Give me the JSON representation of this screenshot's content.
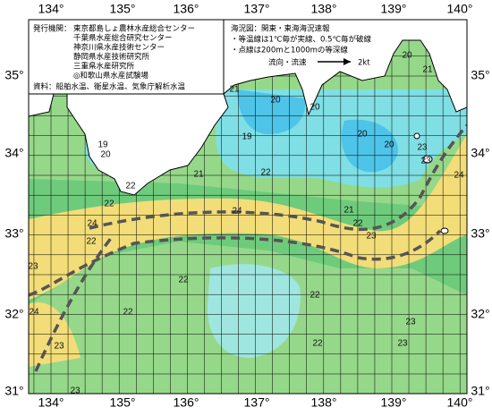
{
  "legend": {
    "agencies_label": "発行機関：",
    "agencies": [
      "東京都島しょ農林水産総合センター",
      "千葉県水産総合研究センター",
      "神奈川県水産技術センター",
      "静岡県水産技術研究所",
      "三重県水産研究所",
      "◎和歌山県水産試験場"
    ],
    "sources": "資料：船舶水温、衛星水温、気象庁解析水温"
  },
  "notes": {
    "title": "海況図：関東・東海海況速報",
    "lines": [
      "・等温線は1℃毎が実線、0.5℃毎が破線",
      "・点線は200mと1000mの等深線"
    ],
    "current_label": "流向・流速",
    "current_speed": "2kt"
  },
  "longitude_labels": [
    "134°",
    "135°",
    "136°",
    "137°",
    "138°",
    "139°",
    "140°"
  ],
  "latitude_labels": [
    "35°",
    "34°",
    "33°",
    "32°",
    "31°"
  ],
  "isotherm_labels": [
    20,
    21,
    21,
    20,
    20,
    19,
    20,
    20,
    23,
    23,
    24,
    19,
    20,
    21,
    22,
    22,
    22,
    24,
    21,
    22,
    23,
    24,
    22,
    23,
    22,
    22,
    24,
    22,
    23,
    22,
    23,
    23,
    23
  ]
}
